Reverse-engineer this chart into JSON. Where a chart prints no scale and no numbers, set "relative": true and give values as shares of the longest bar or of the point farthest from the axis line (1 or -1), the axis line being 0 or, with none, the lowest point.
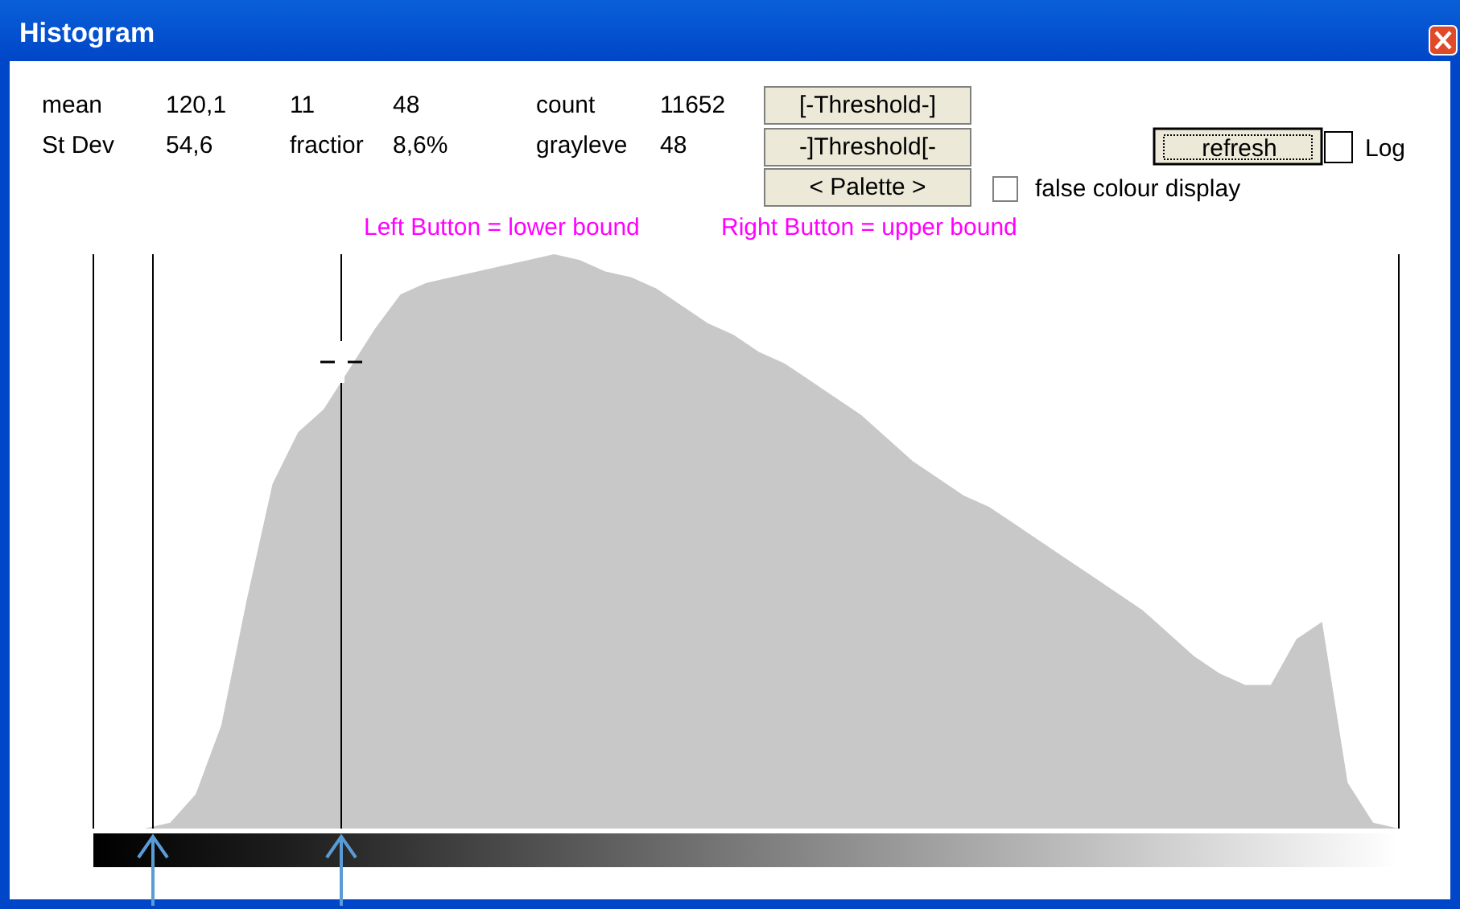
{
  "chart_data": {
    "type": "area",
    "title": "Histogram",
    "relative": true,
    "categories": [
      null,
      null,
      null,
      null,
      null,
      null,
      null,
      null,
      null,
      null,
      null,
      null,
      null,
      null,
      null,
      null,
      null,
      null,
      null,
      null,
      null,
      null,
      null,
      null,
      null,
      null,
      null,
      null,
      null,
      null,
      null,
      null,
      null,
      null,
      null,
      null,
      null,
      null,
      null,
      null,
      null,
      null,
      null,
      null,
      null,
      null,
      null,
      null,
      null,
      null,
      null,
      null
    ],
    "series": [
      {
        "color": "#c8c8c8",
        "values": [
          0,
          0,
          0,
          0.01,
          0.06,
          0.18,
          0.4,
          0.6,
          0.69,
          0.73,
          0.8,
          0.87,
          0.93,
          0.95,
          0.96,
          0.97,
          0.98,
          0.99,
          1.0,
          0.99,
          0.97,
          0.96,
          0.94,
          0.91,
          0.88,
          0.86,
          0.83,
          0.81,
          0.78,
          0.75,
          0.72,
          0.68,
          0.64,
          0.61,
          0.58,
          0.56,
          0.53,
          0.5,
          0.47,
          0.44,
          0.41,
          0.38,
          0.34,
          0.3,
          0.27,
          0.25,
          0.25,
          0.33,
          0.36,
          0.08,
          0.01,
          0
        ]
      }
    ],
    "annotations": [
      "mean",
      "120,1",
      "11",
      "48",
      "count",
      "11652",
      "St Dev",
      "54,6",
      "fractior",
      "8,6%",
      "grayleve",
      "48",
      "[-Threshold-]",
      "-]Threshold[-",
      "< Palette >",
      "refresh",
      "Log",
      "false colour display",
      "Left Button = lower bound",
      "Right Button = upper bound"
    ]
  }
}
